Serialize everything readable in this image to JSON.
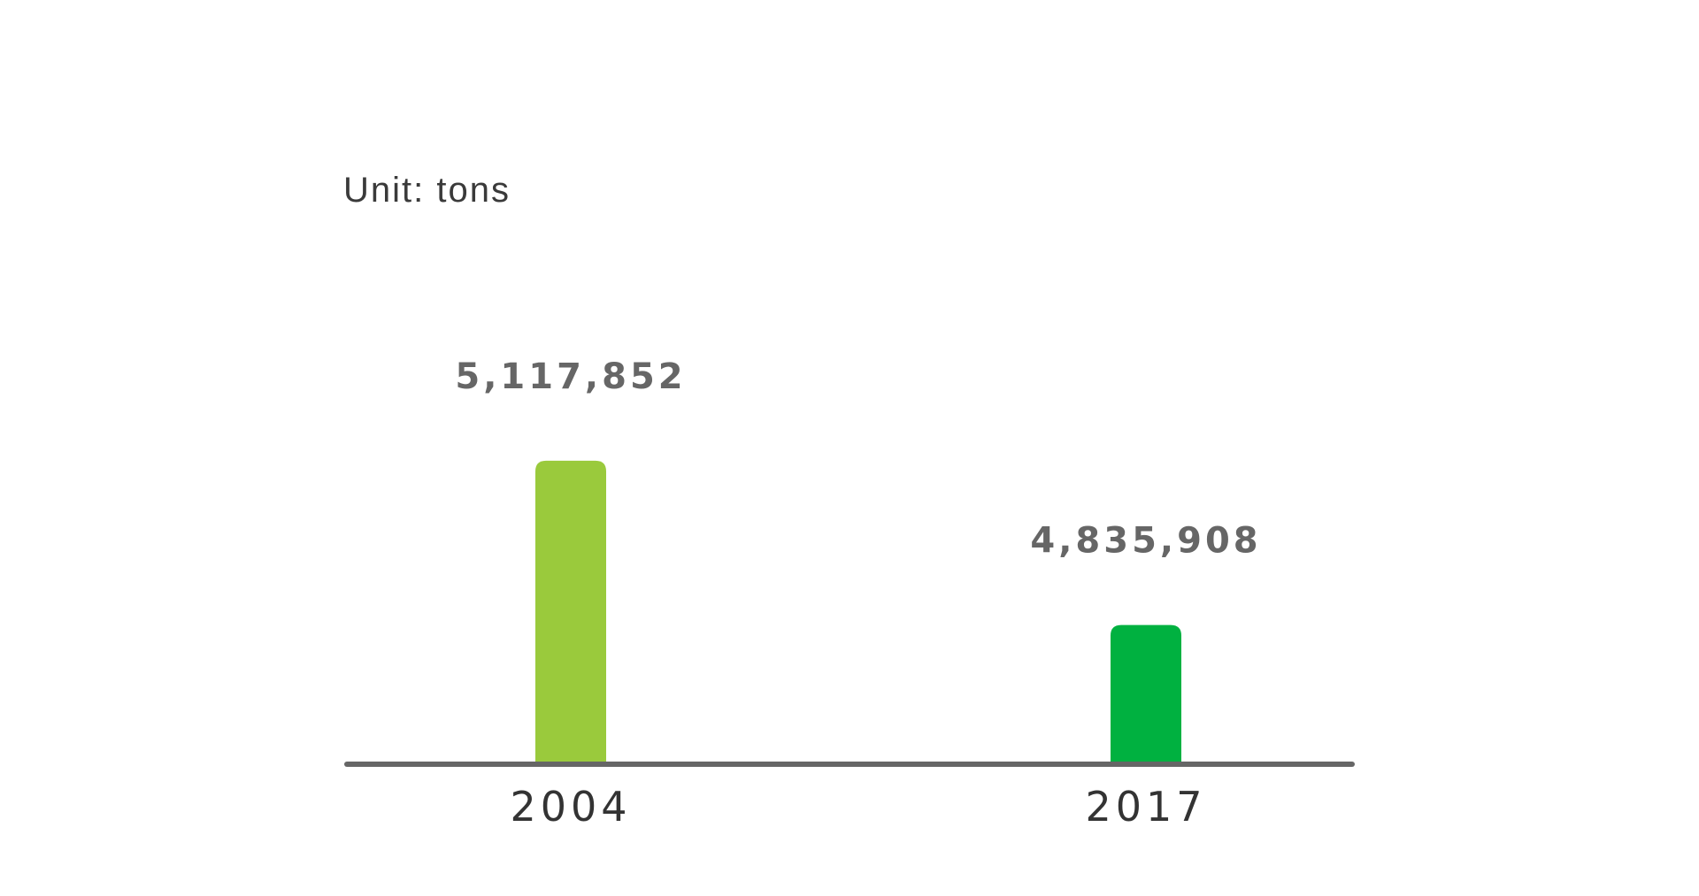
{
  "chart_data": {
    "type": "bar",
    "unit_label": "Unit: tons",
    "categories": [
      "2004",
      "2017"
    ],
    "values": [
      5117852,
      4835908
    ],
    "value_labels": [
      "5,117,852",
      "4,835,908"
    ],
    "colors": [
      "#9ACA3C",
      "#00B140"
    ],
    "axis_color": "#666666",
    "ylim": [
      4600000,
      5180000
    ],
    "grid": false,
    "legend": "none"
  }
}
